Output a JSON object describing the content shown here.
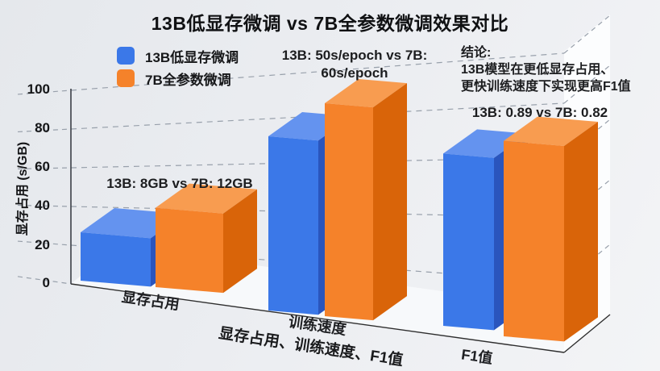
{
  "title": "13B低显存微调 vs 7B全参数微调效果对比",
  "legend": {
    "items": [
      {
        "label": "13B低显存微调",
        "color": "#3b78e8"
      },
      {
        "label": "7B全参数微调",
        "color": "#f5822a"
      }
    ],
    "position": "top-left"
  },
  "axes": {
    "y_label": "显存占用 (s/GB)",
    "y_ticks": [
      "100",
      "80",
      "60",
      "40",
      "20",
      "0"
    ],
    "x_label": "显存占用、训练速度、F1值",
    "categories": [
      "显存占用",
      "训练速度",
      "F1值"
    ]
  },
  "annotations": {
    "vram": "13B: 8GB vs 7B: 12GB",
    "speed_line1": "13B: 50s/epoch vs 7B:",
    "speed_line2": "60s/epoch",
    "f1": "13B: 0.89 vs 7B: 0.82",
    "conclusion_line1": "结论:",
    "conclusion_line2": "13B模型在更低显存占用、",
    "conclusion_line3": "更快训练速度下实现更高F1值"
  },
  "colors": {
    "background": "#ebedf1",
    "gridline": "#98a0ab",
    "axis": "#3b3f46",
    "floor": "#f7f9fb",
    "right_wall": "#fcfdfe",
    "edge": "#2e2e2e"
  },
  "chart_data": {
    "type": "bar",
    "projection": "3d",
    "title": "13B低显存微调 vs 7B全参数微调效果对比",
    "ylabel": "显存占用 (s/GB)",
    "xlabel": "显存占用、训练速度、F1值",
    "ylim": [
      0,
      100
    ],
    "grid": true,
    "legend_position": "top-left",
    "categories": [
      "显存占用",
      "训练速度",
      "F1值"
    ],
    "category_units": [
      "GB",
      "s/epoch",
      "F1"
    ],
    "series": [
      {
        "name": "13B低显存微调",
        "values": [
          8,
          50,
          0.89
        ],
        "drawn_height_axis_units": [
          25,
          90,
          89
        ],
        "colors": {
          "front": "#3b78e8",
          "top": "#6493ef",
          "side": "#2a55bd"
        }
      },
      {
        "name": "7B全参数微调",
        "values": [
          12,
          60,
          0.82
        ],
        "drawn_height_axis_units": [
          41,
          110,
          101
        ],
        "colors": {
          "front": "#f5822a",
          "top": "#f89c50",
          "side": "#d96409"
        }
      }
    ],
    "comparisons": [
      "13B: 8GB vs 7B: 12GB",
      "13B: 50s/epoch vs 7B: 60s/epoch",
      "13B: 0.89 vs 7B: 0.82"
    ],
    "conclusion": "结论: 13B模型在更低显存占用、更快训练速度下实现更高F1值"
  }
}
